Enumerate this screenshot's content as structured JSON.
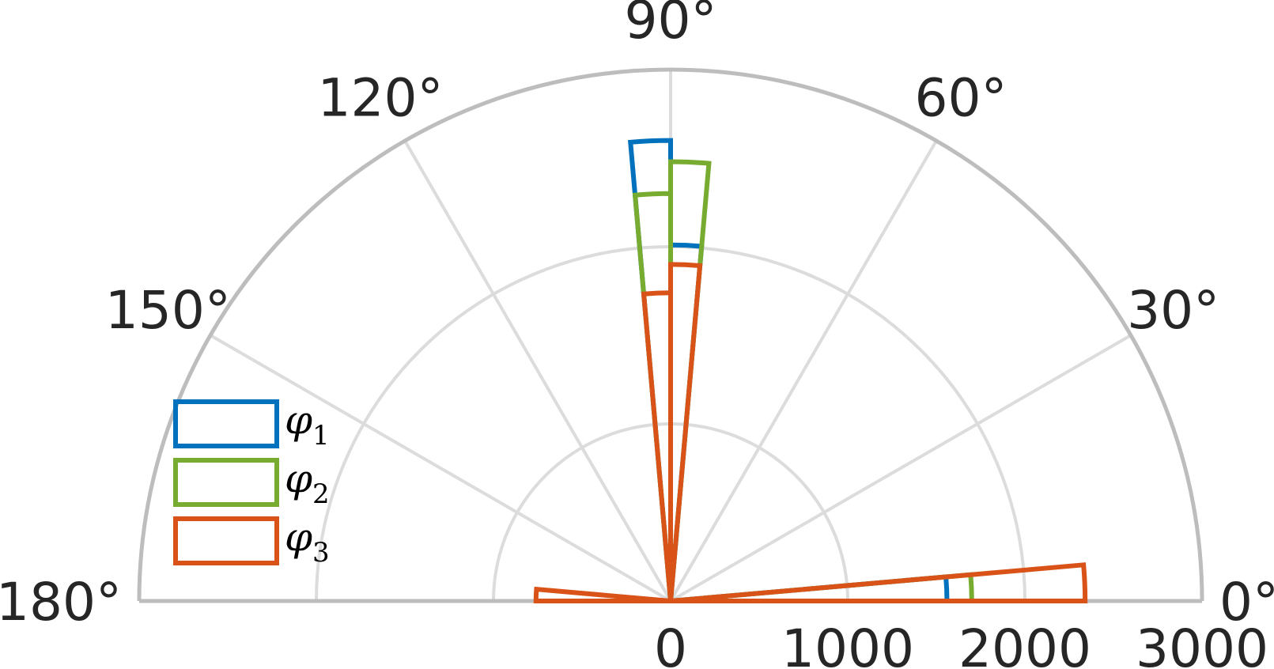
{
  "chart_data": {
    "type": "polar-histogram",
    "title": "",
    "theta_range_deg": [
      0,
      180
    ],
    "theta_ticks_deg": [
      0,
      30,
      60,
      90,
      120,
      150,
      180
    ],
    "theta_tick_labels": [
      "0°",
      "30°",
      "60°",
      "90°",
      "120°",
      "150°",
      "180°"
    ],
    "r_range": [
      0,
      3000
    ],
    "r_ticks": [
      0,
      1000,
      2000,
      3000
    ],
    "r_tick_labels": [
      "0",
      "1000",
      "2000",
      "3000"
    ],
    "grid": true,
    "legend_position": "left",
    "series": [
      {
        "name": "φ1",
        "symbol": "φ",
        "subscript": "1",
        "color": "#0072BD",
        "bins": [
          {
            "theta_start_deg": 0,
            "theta_end_deg": 5,
            "value": 1560
          },
          {
            "theta_start_deg": 85,
            "theta_end_deg": 90,
            "value": 2010
          },
          {
            "theta_start_deg": 90,
            "theta_end_deg": 95,
            "value": 2600
          }
        ]
      },
      {
        "name": "φ2",
        "symbol": "φ",
        "subscript": "2",
        "color": "#77AC30",
        "bins": [
          {
            "theta_start_deg": 0,
            "theta_end_deg": 5,
            "value": 1700
          },
          {
            "theta_start_deg": 85,
            "theta_end_deg": 90,
            "value": 2480
          },
          {
            "theta_start_deg": 90,
            "theta_end_deg": 95,
            "value": 2300
          }
        ]
      },
      {
        "name": "φ3",
        "symbol": "φ",
        "subscript": "3",
        "color": "#D95319",
        "bins": [
          {
            "theta_start_deg": 0,
            "theta_end_deg": 5,
            "value": 2340
          },
          {
            "theta_start_deg": 85,
            "theta_end_deg": 90,
            "value": 1900
          },
          {
            "theta_start_deg": 90,
            "theta_end_deg": 95,
            "value": 1740
          },
          {
            "theta_start_deg": 175,
            "theta_end_deg": 180,
            "value": 760
          }
        ]
      }
    ]
  }
}
